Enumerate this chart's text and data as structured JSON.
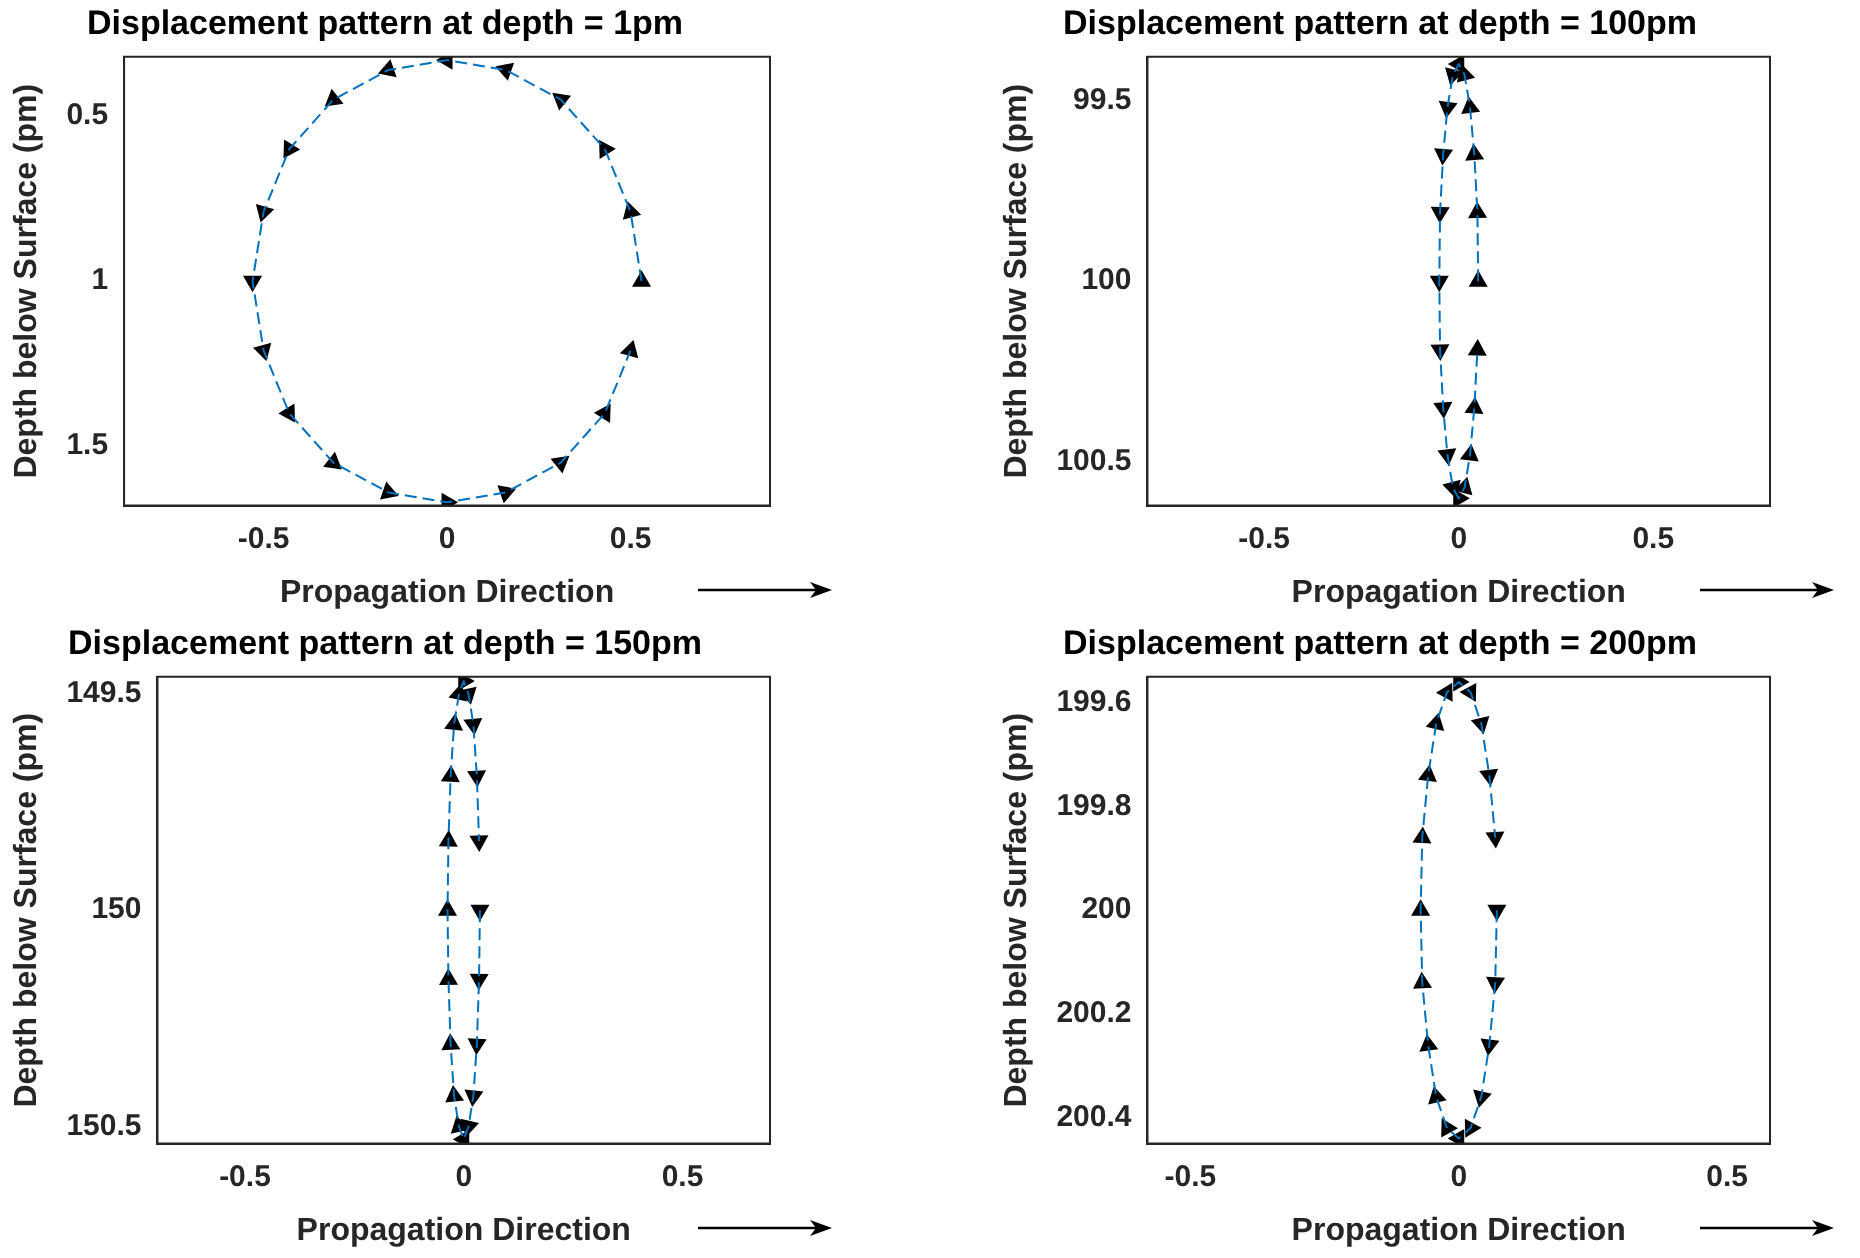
{
  "chart_data": [
    {
      "type": "line",
      "title": "Displacement pattern at depth = 1pm",
      "xlabel": "Propagation Direction",
      "ylabel": "Depth below Surface (pm)",
      "xlim": [
        -0.88,
        0.88
      ],
      "xticks": [
        -0.5,
        0,
        0.5
      ],
      "ylim": [
        1.68,
        0.32
      ],
      "yticks": [
        0.5,
        1,
        1.5
      ],
      "grid": false,
      "series": [
        {
          "type": "line",
          "color": "#0072bd",
          "line_style": "dashed",
          "marker": "none",
          "x": [
            0.53,
            0.5,
            0.43,
            0.31,
            0.16,
            0,
            -0.16,
            -0.31,
            -0.43,
            -0.5,
            -0.53,
            -0.5,
            -0.43,
            -0.31,
            -0.16,
            0,
            0.16,
            0.31,
            0.43,
            0.5
          ],
          "values": [
            1,
            0.79,
            0.6,
            0.45,
            0.36,
            0.33,
            0.36,
            0.45,
            0.6,
            0.79,
            1,
            1.21,
            1.4,
            1.55,
            1.64,
            1.67,
            1.64,
            1.55,
            1.4,
            1.21
          ]
        },
        {
          "type": "scatter",
          "color": "#000000",
          "marker": "triangle",
          "x": [
            0.53,
            0.5,
            0.43,
            0.31,
            0.16,
            0,
            -0.16,
            -0.31,
            -0.43,
            -0.5,
            -0.53,
            -0.5,
            -0.43,
            -0.31,
            -0.16,
            0,
            0.16,
            0.31,
            0.43,
            0.5
          ],
          "values": [
            1,
            0.79,
            0.6,
            0.45,
            0.36,
            0.33,
            0.36,
            0.45,
            0.6,
            0.79,
            1,
            1.21,
            1.4,
            1.55,
            1.64,
            1.67,
            1.64,
            1.55,
            1.4,
            1.21
          ]
        }
      ]
    },
    {
      "type": "line",
      "title": "Displacement pattern at depth = 100pm",
      "xlabel": "Propagation Direction",
      "ylabel": "Depth below Surface (pm)",
      "xlim": [
        -0.8,
        0.8
      ],
      "xticks": [
        -0.5,
        0,
        0.5
      ],
      "ylim": [
        100.62,
        99.38
      ],
      "yticks": [
        99.5,
        100,
        100.5
      ],
      "grid": false,
      "series": [
        {
          "type": "line",
          "color": "#0072bd",
          "line_style": "dashed",
          "marker": "none",
          "x": [
            0.05,
            0.048,
            0.04,
            0.029,
            0.015,
            0,
            -0.015,
            -0.029,
            -0.04,
            -0.048,
            -0.05,
            -0.048,
            -0.04,
            -0.029,
            -0.015,
            0,
            0.015,
            0.029,
            0.04,
            0.048
          ],
          "values": [
            100,
            99.81,
            99.65,
            99.52,
            99.43,
            99.4,
            99.43,
            99.52,
            99.65,
            99.81,
            100,
            100.19,
            100.35,
            100.48,
            100.57,
            100.6,
            100.57,
            100.48,
            100.35,
            100.19
          ]
        },
        {
          "type": "scatter",
          "color": "#000000",
          "marker": "triangle",
          "x": [
            0.05,
            0.048,
            0.04,
            0.029,
            0.015,
            0,
            -0.015,
            -0.029,
            -0.04,
            -0.048,
            -0.05,
            -0.048,
            -0.04,
            -0.029,
            -0.015,
            0,
            0.015,
            0.029,
            0.04,
            0.048
          ],
          "values": [
            100,
            99.81,
            99.65,
            99.52,
            99.43,
            99.4,
            99.43,
            99.52,
            99.65,
            99.81,
            100,
            100.19,
            100.35,
            100.48,
            100.57,
            100.6,
            100.57,
            100.48,
            100.35,
            100.19
          ]
        }
      ]
    },
    {
      "type": "line",
      "title": "Displacement pattern at depth = 150pm",
      "xlabel": "Propagation Direction",
      "ylabel": "Depth below Surface (pm)",
      "xlim": [
        -0.7,
        0.7
      ],
      "xticks": [
        -0.5,
        0,
        0.5
      ],
      "ylim": [
        150.54,
        149.46
      ],
      "yticks": [
        149.5,
        150,
        150.5
      ],
      "grid": false,
      "series": [
        {
          "type": "line",
          "color": "#0072bd",
          "line_style": "dashed",
          "marker": "none",
          "x": [
            0.037,
            0.035,
            0.03,
            0.022,
            0.011,
            0,
            -0.011,
            -0.022,
            -0.03,
            -0.035,
            -0.037,
            -0.035,
            -0.03,
            -0.022,
            -0.011,
            0,
            0.011,
            0.022,
            0.03,
            0.035
          ],
          "values": [
            150,
            150.16,
            150.31,
            150.43,
            150.5,
            150.53,
            150.5,
            150.43,
            150.31,
            150.16,
            150,
            149.84,
            149.69,
            149.57,
            149.5,
            149.47,
            149.5,
            149.57,
            149.69,
            149.84
          ]
        },
        {
          "type": "scatter",
          "color": "#000000",
          "marker": "triangle",
          "x": [
            0.037,
            0.035,
            0.03,
            0.022,
            0.011,
            0,
            -0.011,
            -0.022,
            -0.03,
            -0.035,
            -0.037,
            -0.035,
            -0.03,
            -0.022,
            -0.011,
            0,
            0.011,
            0.022,
            0.03,
            0.035
          ],
          "values": [
            150,
            150.16,
            150.31,
            150.43,
            150.5,
            150.53,
            150.5,
            150.43,
            150.31,
            150.16,
            150,
            149.84,
            149.69,
            149.57,
            149.5,
            149.47,
            149.5,
            149.57,
            149.69,
            149.84
          ]
        }
      ]
    },
    {
      "type": "line",
      "title": "Displacement pattern at depth = 200pm",
      "xlabel": "Propagation Direction",
      "ylabel": "Depth below Surface (pm)",
      "xlim": [
        -0.58,
        0.58
      ],
      "xticks": [
        -0.5,
        0,
        0.5
      ],
      "ylim": [
        200.45,
        199.55
      ],
      "yticks": [
        199.6,
        199.8,
        200,
        200.2,
        200.4
      ],
      "grid": false,
      "series": [
        {
          "type": "line",
          "color": "#0072bd",
          "line_style": "dashed",
          "marker": "none",
          "x": [
            0.071,
            0.068,
            0.057,
            0.042,
            0.022,
            0,
            -0.022,
            -0.042,
            -0.057,
            -0.068,
            -0.071,
            -0.068,
            -0.057,
            -0.042,
            -0.022,
            0,
            0.022,
            0.042,
            0.057,
            0.068
          ],
          "values": [
            200,
            200.14,
            200.26,
            200.36,
            200.42,
            200.44,
            200.42,
            200.36,
            200.26,
            200.14,
            200,
            199.86,
            199.74,
            199.64,
            199.58,
            199.56,
            199.58,
            199.64,
            199.74,
            199.86
          ]
        },
        {
          "type": "scatter",
          "color": "#000000",
          "marker": "triangle",
          "x": [
            0.071,
            0.068,
            0.057,
            0.042,
            0.022,
            0,
            -0.022,
            -0.042,
            -0.057,
            -0.068,
            -0.071,
            -0.068,
            -0.057,
            -0.042,
            -0.022,
            0,
            0.022,
            0.042,
            0.057,
            0.068
          ],
          "values": [
            200,
            200.14,
            200.26,
            200.36,
            200.42,
            200.44,
            200.42,
            200.36,
            200.26,
            200.14,
            200,
            199.86,
            199.74,
            199.64,
            199.58,
            199.56,
            199.58,
            199.64,
            199.74,
            199.86
          ]
        }
      ]
    }
  ]
}
